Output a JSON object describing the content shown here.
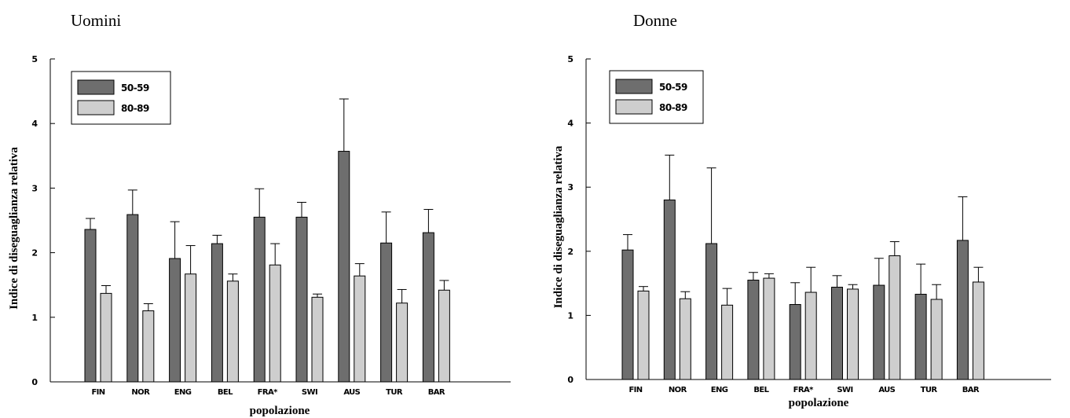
{
  "chart_data": [
    {
      "type": "bar",
      "title": "Uomini",
      "xlabel": "popolazione",
      "ylabel": "Indice di diseguaglianza relativa",
      "ylim": [
        0,
        5
      ],
      "yticks": [
        "0",
        "1",
        "2",
        "3",
        "4",
        "5"
      ],
      "categories": [
        "FIN",
        "NOR",
        "ENG",
        "BEL",
        "FRA*",
        "SWI",
        "AUS",
        "TUR",
        "BAR"
      ],
      "legend_position": "top-left",
      "series": [
        {
          "name": "50-59",
          "color": "#6e6e6e",
          "values": [
            2.36,
            2.59,
            1.91,
            2.14,
            2.55,
            2.55,
            3.57,
            2.15,
            2.31
          ],
          "error_upper": [
            2.53,
            2.97,
            2.48,
            2.27,
            2.99,
            2.78,
            4.38,
            2.63,
            2.67
          ]
        },
        {
          "name": "80-89",
          "color": "#cecece",
          "values": [
            1.37,
            1.1,
            1.67,
            1.56,
            1.81,
            1.31,
            1.64,
            1.22,
            1.42
          ],
          "error_upper": [
            1.49,
            1.21,
            2.11,
            1.67,
            2.14,
            1.36,
            1.83,
            1.43,
            1.57
          ]
        }
      ]
    },
    {
      "type": "bar",
      "title": "Donne",
      "xlabel": "popolazione",
      "ylabel": "Indice di diseguaglianza relativa",
      "ylim": [
        0,
        5
      ],
      "yticks": [
        "0",
        "1",
        "2",
        "3",
        "4",
        "5"
      ],
      "categories": [
        "FIN",
        "NOR",
        "ENG",
        "BEL",
        "FRA*",
        "SWI",
        "AUS",
        "TUR",
        "BAR"
      ],
      "legend_position": "top-left",
      "series": [
        {
          "name": "50-59",
          "color": "#6e6e6e",
          "values": [
            2.02,
            2.8,
            2.12,
            1.55,
            1.17,
            1.44,
            1.47,
            1.33,
            2.17
          ],
          "error_upper": [
            2.26,
            3.5,
            3.3,
            1.67,
            1.51,
            1.62,
            1.89,
            1.8,
            2.85
          ]
        },
        {
          "name": "80-89",
          "color": "#cecece",
          "values": [
            1.38,
            1.26,
            1.16,
            1.58,
            1.36,
            1.41,
            1.93,
            1.25,
            1.52
          ],
          "error_upper": [
            1.45,
            1.37,
            1.42,
            1.65,
            1.75,
            1.48,
            2.15,
            1.48,
            1.75
          ]
        }
      ]
    }
  ]
}
